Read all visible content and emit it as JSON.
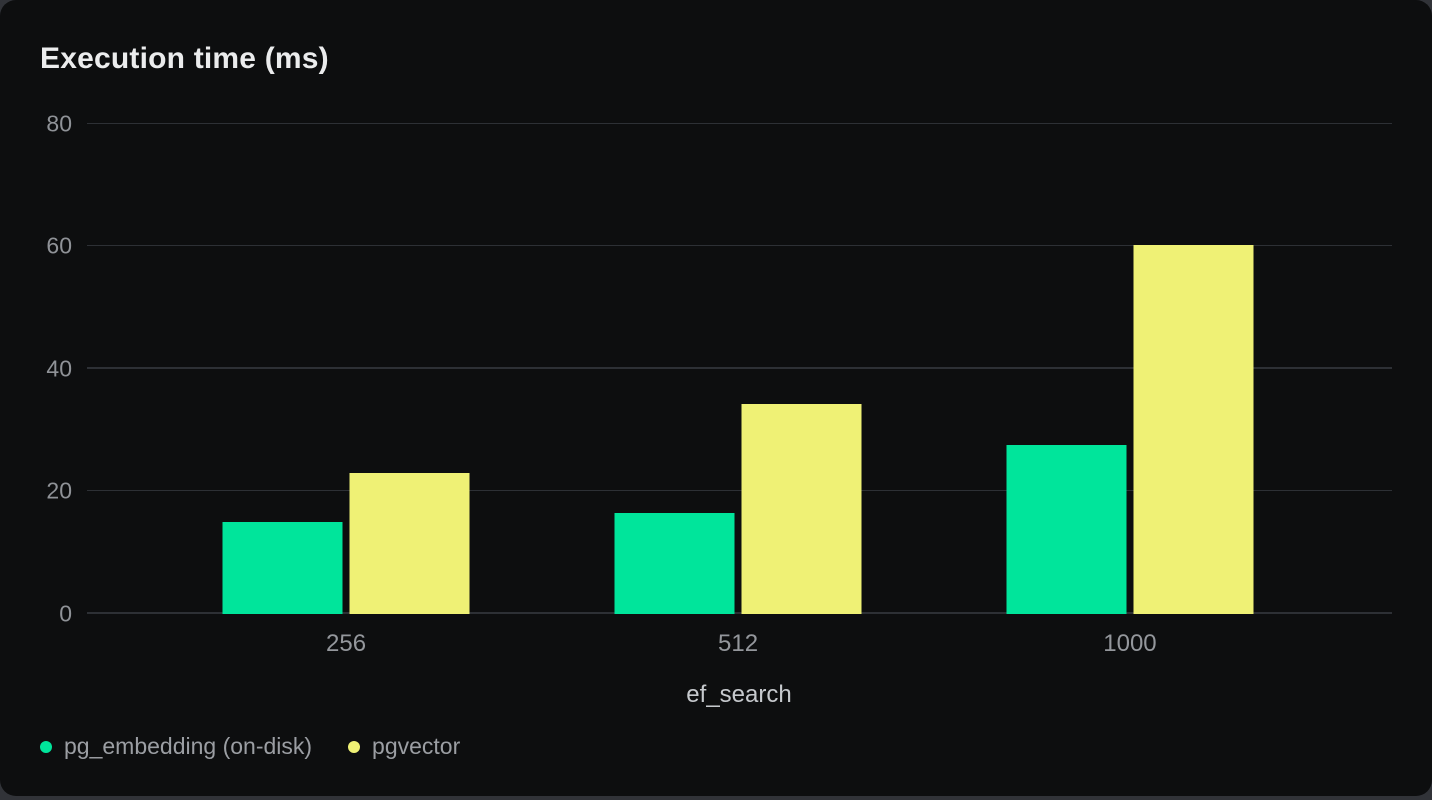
{
  "chart_data": {
    "type": "bar",
    "title": "Execution time (ms)",
    "xlabel": "ef_search",
    "ylabel": "",
    "categories": [
      "256",
      "512",
      "1000"
    ],
    "series": [
      {
        "name": "pg_embedding (on-disk)",
        "color": "#00e59b",
        "values": [
          15.0,
          16.4,
          27.6
        ]
      },
      {
        "name": "pgvector",
        "color": "#eff175",
        "values": [
          23.0,
          34.3,
          60.3
        ]
      }
    ],
    "ylim": [
      0,
      80
    ],
    "yticks": [
      0,
      20,
      40,
      60,
      80
    ],
    "grid": "horizontal",
    "legend_position": "bottom-left",
    "background_color": "#0d0e0f"
  }
}
